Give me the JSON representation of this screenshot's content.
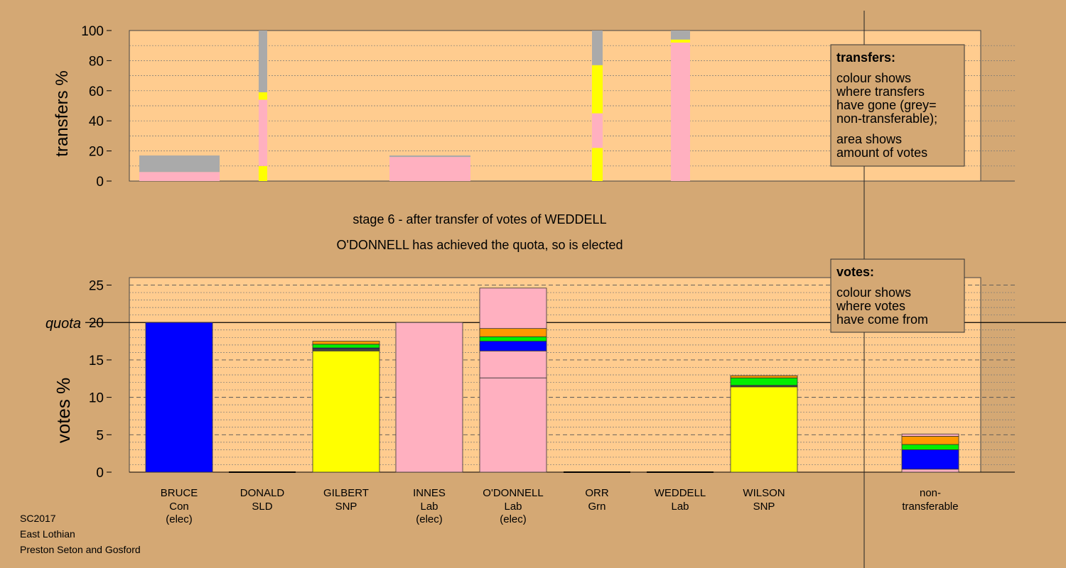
{
  "colors": {
    "background": "#d4a874",
    "panel": "#ffcc8f",
    "Con": "#0000ff",
    "Lab": "#ffb0c0",
    "SNP": "#ffff00",
    "SLD": "#ff9900",
    "Grn": "#00ee00",
    "nontransferable": "#aaaaaa",
    "dark": "#444444"
  },
  "stage_text": {
    "line1": "stage 6 - after transfer of votes of WEDDELL",
    "line2": "O'DONNELL has achieved the quota, so is elected"
  },
  "footer": [
    "SC2017",
    "East Lothian",
    "Preston Seton and Gosford"
  ],
  "transfers_legend": {
    "title": "transfers:",
    "lines": [
      "colour shows",
      "where transfers",
      "have gone (grey=",
      "non-transferable);",
      "area shows",
      "amount of votes"
    ]
  },
  "votes_legend": {
    "title": "votes:",
    "lines": [
      "colour shows",
      "where votes",
      "have come from"
    ]
  },
  "chart_data": [
    {
      "type": "bar",
      "name": "transfers",
      "ylabel": "transfers %",
      "ylim": [
        0,
        100
      ],
      "yticks": [
        0,
        20,
        40,
        60,
        80,
        100
      ],
      "bars": [
        {
          "candidate": "BRUCE",
          "segments": [
            {
              "party": "Lab",
              "from": 0,
              "to": 6
            },
            {
              "party": "nontransferable",
              "from": 6,
              "to": 17
            }
          ]
        },
        {
          "candidate": "DONALD",
          "segments": [
            {
              "party": "SNP",
              "from": 0,
              "to": 10
            },
            {
              "party": "Lab",
              "from": 10,
              "to": 54
            },
            {
              "party": "SNP",
              "from": 54,
              "to": 59
            },
            {
              "party": "nontransferable",
              "from": 59,
              "to": 100
            }
          ]
        },
        {
          "candidate": "INNES",
          "segments": [
            {
              "party": "Lab",
              "from": 0,
              "to": 16
            },
            {
              "party": "nontransferable",
              "from": 16,
              "to": 17
            }
          ]
        },
        {
          "candidate": "ORR",
          "segments": [
            {
              "party": "SNP",
              "from": 0,
              "to": 22
            },
            {
              "party": "Lab",
              "from": 22,
              "to": 45
            },
            {
              "party": "SNP",
              "from": 45,
              "to": 77
            },
            {
              "party": "nontransferable",
              "from": 77,
              "to": 100
            }
          ]
        },
        {
          "candidate": "WEDDELL",
          "segments": [
            {
              "party": "Lab",
              "from": 0,
              "to": 92
            },
            {
              "party": "SNP",
              "from": 92,
              "to": 94
            },
            {
              "party": "nontransferable",
              "from": 94,
              "to": 100
            }
          ]
        }
      ]
    },
    {
      "type": "bar",
      "name": "votes",
      "ylabel": "votes %",
      "ylim": [
        0,
        25
      ],
      "yticks": [
        0,
        5,
        10,
        15,
        20,
        25
      ],
      "quota": 20,
      "quota_label": "quota",
      "categories": [
        {
          "name": "BRUCE",
          "party": "Con",
          "note": "(elec)",
          "total": 20.0,
          "segments": [
            {
              "party": "Con",
              "from": 0,
              "to": 20.0
            }
          ]
        },
        {
          "name": "DONALD",
          "party": "SLD",
          "note": "",
          "total": 0,
          "segments": []
        },
        {
          "name": "GILBERT",
          "party": "SNP",
          "note": "",
          "total": 17.5,
          "segments": [
            {
              "party": "SNP",
              "from": 0,
              "to": 16.2
            },
            {
              "party": "dark",
              "from": 16.2,
              "to": 16.5
            },
            {
              "party": "Con",
              "from": 16.5,
              "to": 16.6
            },
            {
              "party": "Grn",
              "from": 16.6,
              "to": 17.1
            },
            {
              "party": "SLD",
              "from": 17.1,
              "to": 17.5
            }
          ]
        },
        {
          "name": "INNES",
          "party": "Lab",
          "note": "(elec)",
          "total": 20.0,
          "segments": [
            {
              "party": "Lab",
              "from": 0,
              "to": 20.0
            }
          ]
        },
        {
          "name": "O'DONNELL",
          "party": "Lab",
          "note": "(elec)",
          "total": 24.6,
          "segments": [
            {
              "party": "Lab",
              "from": 0,
              "to": 12.6
            },
            {
              "party": "Lab",
              "from": 12.6,
              "to": 16.2
            },
            {
              "party": "Con",
              "from": 16.2,
              "to": 17.5
            },
            {
              "party": "Grn",
              "from": 17.5,
              "to": 18.1
            },
            {
              "party": "SLD",
              "from": 18.1,
              "to": 19.2
            },
            {
              "party": "Lab",
              "from": 19.2,
              "to": 24.6
            }
          ]
        },
        {
          "name": "ORR",
          "party": "Grn",
          "note": "",
          "total": 0,
          "segments": []
        },
        {
          "name": "WEDDELL",
          "party": "Lab",
          "note": "",
          "total": 0,
          "segments": []
        },
        {
          "name": "WILSON",
          "party": "SNP",
          "note": "",
          "total": 12.9,
          "segments": [
            {
              "party": "SNP",
              "from": 0,
              "to": 11.4
            },
            {
              "party": "dark",
              "from": 11.4,
              "to": 11.6
            },
            {
              "party": "Grn",
              "from": 11.6,
              "to": 12.6
            },
            {
              "party": "SLD",
              "from": 12.6,
              "to": 12.9
            }
          ]
        },
        {
          "name": "non-",
          "party": "transferable",
          "note": "",
          "total": 5.1,
          "segments": [
            {
              "party": "Lab",
              "from": 0,
              "to": 0.4
            },
            {
              "party": "Con",
              "from": 0.4,
              "to": 3.0
            },
            {
              "party": "Grn",
              "from": 3.0,
              "to": 3.7
            },
            {
              "party": "SLD",
              "from": 3.7,
              "to": 4.8
            },
            {
              "party": "Lab",
              "from": 4.8,
              "to": 5.1
            }
          ]
        }
      ]
    }
  ]
}
